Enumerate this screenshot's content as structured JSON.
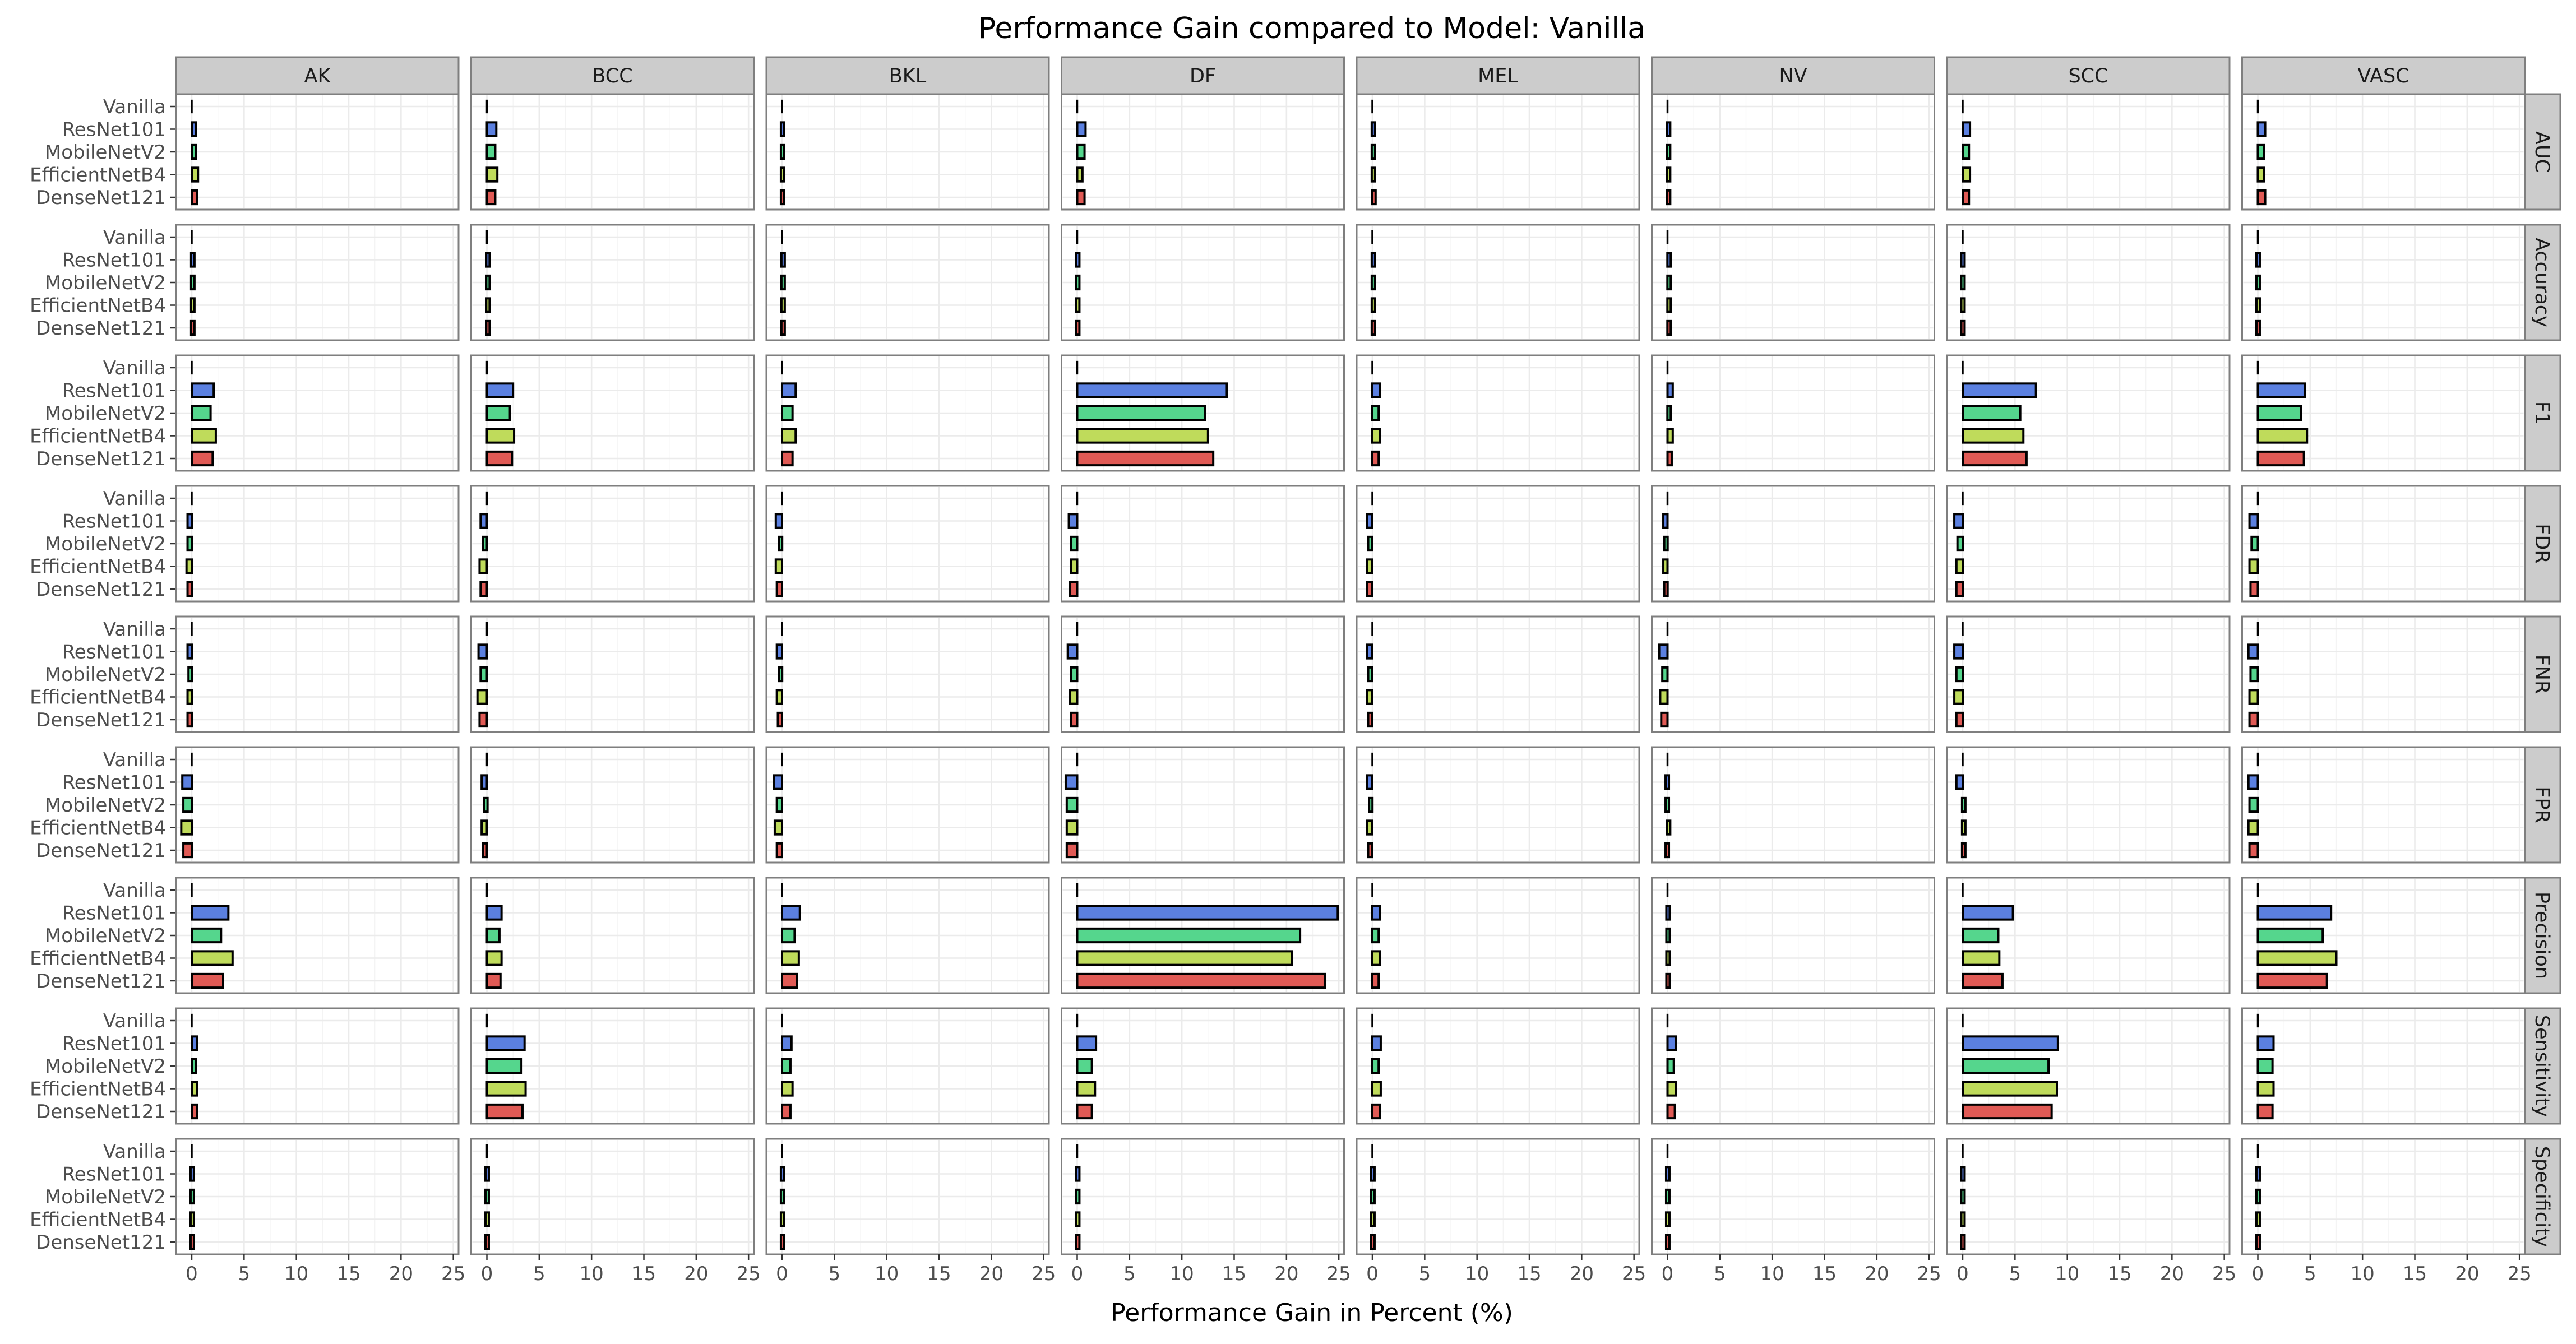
{
  "chart_data": {
    "type": "bar",
    "orientation": "horizontal",
    "title": "Performance Gain compared to Model: Vanilla",
    "xlabel": "Performance Gain in Percent (%)",
    "ylabel": "",
    "xlim": [
      -1.5,
      25.5
    ],
    "xticks": [
      0,
      5,
      10,
      15,
      20,
      25
    ],
    "grid": true,
    "facet_columns": [
      "AK",
      "BCC",
      "BKL",
      "DF",
      "MEL",
      "NV",
      "SCC",
      "VASC"
    ],
    "facet_rows": [
      "AUC",
      "Accuracy",
      "F1",
      "FDR",
      "FNR",
      "FPR",
      "Precision",
      "Sensitivity",
      "Specificity"
    ],
    "categories": [
      "Vanilla",
      "ResNet101",
      "MobileNetV2",
      "EfficientNetB4",
      "DenseNet121"
    ],
    "series_colors": {
      "Vanilla": "#000000",
      "ResNet101": "#5b80e0",
      "MobileNetV2": "#55d68d",
      "EfficientNetB4": "#bfdb5b",
      "DenseNet121": "#e05a55"
    },
    "values": {
      "AUC": {
        "AK": [
          0,
          0.4,
          0.4,
          0.6,
          0.5
        ],
        "BCC": [
          0,
          0.9,
          0.8,
          1.0,
          0.8
        ],
        "BKL": [
          0,
          0.1,
          0.1,
          0.1,
          0.1
        ],
        "DF": [
          0,
          0.8,
          0.7,
          0.5,
          0.7
        ],
        "MEL": [
          0,
          0.2,
          0.2,
          0.2,
          0.3
        ],
        "NV": [
          0,
          0.2,
          0.2,
          0.2,
          0.2
        ],
        "SCC": [
          0,
          0.7,
          0.6,
          0.7,
          0.6
        ],
        "VASC": [
          0,
          0.7,
          0.6,
          0.6,
          0.7
        ]
      },
      "Accuracy": {
        "AK": [
          0,
          0.2,
          0.2,
          0.2,
          0.2
        ],
        "BCC": [
          0,
          0.2,
          0.2,
          0.2,
          0.2
        ],
        "BKL": [
          0,
          0.2,
          0.2,
          0.2,
          0.2
        ],
        "DF": [
          0,
          0.1,
          0.1,
          0.1,
          0.1
        ],
        "MEL": [
          0,
          0.2,
          0.2,
          0.2,
          0.2
        ],
        "NV": [
          0,
          0.3,
          0.3,
          0.3,
          0.3
        ],
        "SCC": [
          0,
          0.05,
          0.05,
          0.05,
          0.05
        ],
        "VASC": [
          0,
          0.05,
          0.05,
          0.05,
          0.05
        ]
      },
      "F1": {
        "AK": [
          0,
          2.1,
          1.8,
          2.3,
          2.0
        ],
        "BCC": [
          0,
          2.5,
          2.2,
          2.6,
          2.4
        ],
        "BKL": [
          0,
          1.3,
          1.0,
          1.3,
          1.0
        ],
        "DF": [
          0,
          14.3,
          12.2,
          12.5,
          13.0
        ],
        "MEL": [
          0,
          0.7,
          0.6,
          0.7,
          0.6
        ],
        "NV": [
          0,
          0.5,
          0.3,
          0.5,
          0.4
        ],
        "SCC": [
          0,
          7.0,
          5.5,
          5.8,
          6.1
        ],
        "VASC": [
          0,
          4.5,
          4.1,
          4.7,
          4.4
        ]
      },
      "FDR": {
        "AK": [
          0,
          -0.4,
          -0.4,
          -0.5,
          -0.4
        ],
        "BCC": [
          0,
          -0.6,
          -0.4,
          -0.7,
          -0.6
        ],
        "BKL": [
          0,
          -0.6,
          -0.3,
          -0.6,
          -0.5
        ],
        "DF": [
          0,
          -0.8,
          -0.6,
          -0.6,
          -0.7
        ],
        "MEL": [
          0,
          -0.5,
          -0.4,
          -0.5,
          -0.5
        ],
        "NV": [
          0,
          -0.4,
          -0.3,
          -0.4,
          -0.3
        ],
        "SCC": [
          0,
          -0.8,
          -0.5,
          -0.6,
          -0.6
        ],
        "VASC": [
          0,
          -0.8,
          -0.6,
          -0.8,
          -0.7
        ]
      },
      "FNR": {
        "AK": [
          0,
          -0.4,
          -0.3,
          -0.4,
          -0.4
        ],
        "BCC": [
          0,
          -0.8,
          -0.6,
          -0.9,
          -0.7
        ],
        "BKL": [
          0,
          -0.5,
          -0.3,
          -0.5,
          -0.4
        ],
        "DF": [
          0,
          -0.9,
          -0.6,
          -0.7,
          -0.6
        ],
        "MEL": [
          0,
          -0.5,
          -0.4,
          -0.5,
          -0.4
        ],
        "NV": [
          0,
          -0.8,
          -0.5,
          -0.7,
          -0.6
        ],
        "SCC": [
          0,
          -0.8,
          -0.6,
          -0.8,
          -0.6
        ],
        "VASC": [
          0,
          -0.9,
          -0.7,
          -0.8,
          -0.8
        ]
      },
      "FPR": {
        "AK": [
          0,
          -0.9,
          -0.8,
          -1.0,
          -0.8
        ],
        "BCC": [
          0,
          -0.5,
          -0.2,
          -0.5,
          -0.4
        ],
        "BKL": [
          0,
          -0.8,
          -0.5,
          -0.7,
          -0.5
        ],
        "DF": [
          0,
          -1.1,
          -1.0,
          -1.0,
          -1.0
        ],
        "MEL": [
          0,
          -0.5,
          -0.3,
          -0.5,
          -0.4
        ],
        "NV": [
          0,
          -0.05,
          -0.05,
          0.2,
          -0.05
        ],
        "SCC": [
          0,
          -0.6,
          0.2,
          0.2,
          0.2
        ],
        "VASC": [
          0,
          -0.9,
          -0.8,
          -0.9,
          -0.8
        ]
      },
      "Precision": {
        "AK": [
          0,
          3.5,
          2.8,
          3.9,
          3.0
        ],
        "BCC": [
          0,
          1.4,
          1.2,
          1.4,
          1.3
        ],
        "BKL": [
          0,
          1.7,
          1.2,
          1.6,
          1.4
        ],
        "DF": [
          0,
          24.9,
          21.3,
          20.5,
          23.7
        ],
        "MEL": [
          0,
          0.7,
          0.6,
          0.7,
          0.6
        ],
        "NV": [
          0,
          0.1,
          0.1,
          0.1,
          0.1
        ],
        "SCC": [
          0,
          4.8,
          3.4,
          3.5,
          3.8
        ],
        "VASC": [
          0,
          7.0,
          6.2,
          7.5,
          6.6
        ]
      },
      "Sensitivity": {
        "AK": [
          0,
          0.5,
          0.4,
          0.5,
          0.5
        ],
        "BCC": [
          0,
          3.6,
          3.3,
          3.7,
          3.4
        ],
        "BKL": [
          0,
          0.9,
          0.8,
          1.0,
          0.8
        ],
        "DF": [
          0,
          1.8,
          1.4,
          1.7,
          1.4
        ],
        "MEL": [
          0,
          0.8,
          0.6,
          0.8,
          0.7
        ],
        "NV": [
          0,
          0.8,
          0.6,
          0.8,
          0.7
        ],
        "SCC": [
          0,
          9.1,
          8.2,
          9.0,
          8.5
        ],
        "VASC": [
          0,
          1.5,
          1.4,
          1.5,
          1.4
        ]
      },
      "Specificity": {
        "AK": [
          0,
          0.1,
          0.1,
          0.1,
          0.1
        ],
        "BCC": [
          0,
          0.05,
          0.05,
          0.05,
          0.05
        ],
        "BKL": [
          0,
          0.1,
          0.1,
          0.1,
          0.1
        ],
        "DF": [
          0,
          0.1,
          0.1,
          0.1,
          0.1
        ],
        "MEL": [
          0,
          0.1,
          0.1,
          0.1,
          0.1
        ],
        "NV": [
          0,
          0.05,
          0.05,
          0.05,
          0.05
        ],
        "SCC": [
          0,
          0.05,
          0.05,
          0.05,
          0.05
        ],
        "VASC": [
          0,
          0.05,
          0.05,
          0.05,
          0.05
        ]
      }
    }
  }
}
